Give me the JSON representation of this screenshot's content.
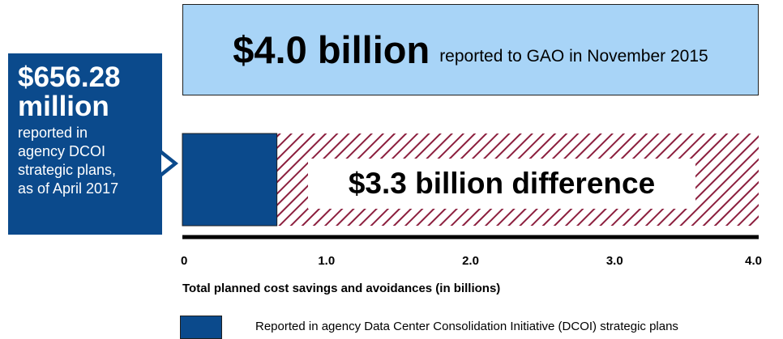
{
  "chart_data": {
    "type": "bar",
    "orientation": "horizontal",
    "xlim": [
      0,
      4.0
    ],
    "ticks": [
      "0",
      "1.0",
      "2.0",
      "3.0",
      "4.0"
    ],
    "tick_values": [
      0,
      1.0,
      2.0,
      3.0,
      4.0
    ],
    "xlabel": "Total planned cost savings and avoidances (in billions)",
    "series": [
      {
        "name": "Reported in agency Data Center Consolidation Initiative (DCOI) strategic plans",
        "value": 0.65628,
        "color": "#0b4a8c"
      },
      {
        "value": 4.0,
        "color": "#a8d4f7"
      }
    ],
    "difference_value": 3.34372,
    "hatch_color": "#8c1f3e",
    "legend_position": "bottom"
  },
  "top_bar": {
    "amount": "$4.0 billion",
    "description": "reported to GAO in November 2015"
  },
  "left_callout": {
    "amount_line1": "$656.28",
    "amount_line2": "million",
    "desc_lines": [
      "reported in",
      "agency DCOI",
      "strategic plans,",
      "as of April 2017"
    ]
  },
  "difference_label": "$3.3 billion difference",
  "legend": {
    "label": "Reported in agency Data Center Consolidation Initiative (DCOI) strategic plans"
  }
}
